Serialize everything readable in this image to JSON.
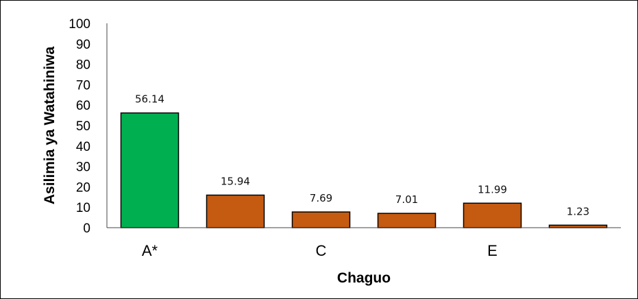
{
  "chart_data": {
    "type": "bar",
    "categories": [
      "A*",
      "",
      "C",
      "",
      "E",
      ""
    ],
    "values": [
      56.14,
      15.94,
      7.69,
      7.01,
      11.99,
      1.23
    ],
    "value_labels": [
      "56.14",
      "15.94",
      "7.69",
      "7.01",
      "11.99",
      "1.23"
    ],
    "bar_colors": [
      "#00b050",
      "#c55a11",
      "#c55a11",
      "#c55a11",
      "#c55a11",
      "#c55a11"
    ],
    "title": "",
    "xlabel": "Chaguo",
    "ylabel": "Asilimia ya Watahiniwa",
    "ylim": [
      0,
      100
    ],
    "yticks": [
      0,
      10,
      20,
      30,
      40,
      50,
      60,
      70,
      80,
      90,
      100
    ],
    "grid": false,
    "legend": "none"
  }
}
